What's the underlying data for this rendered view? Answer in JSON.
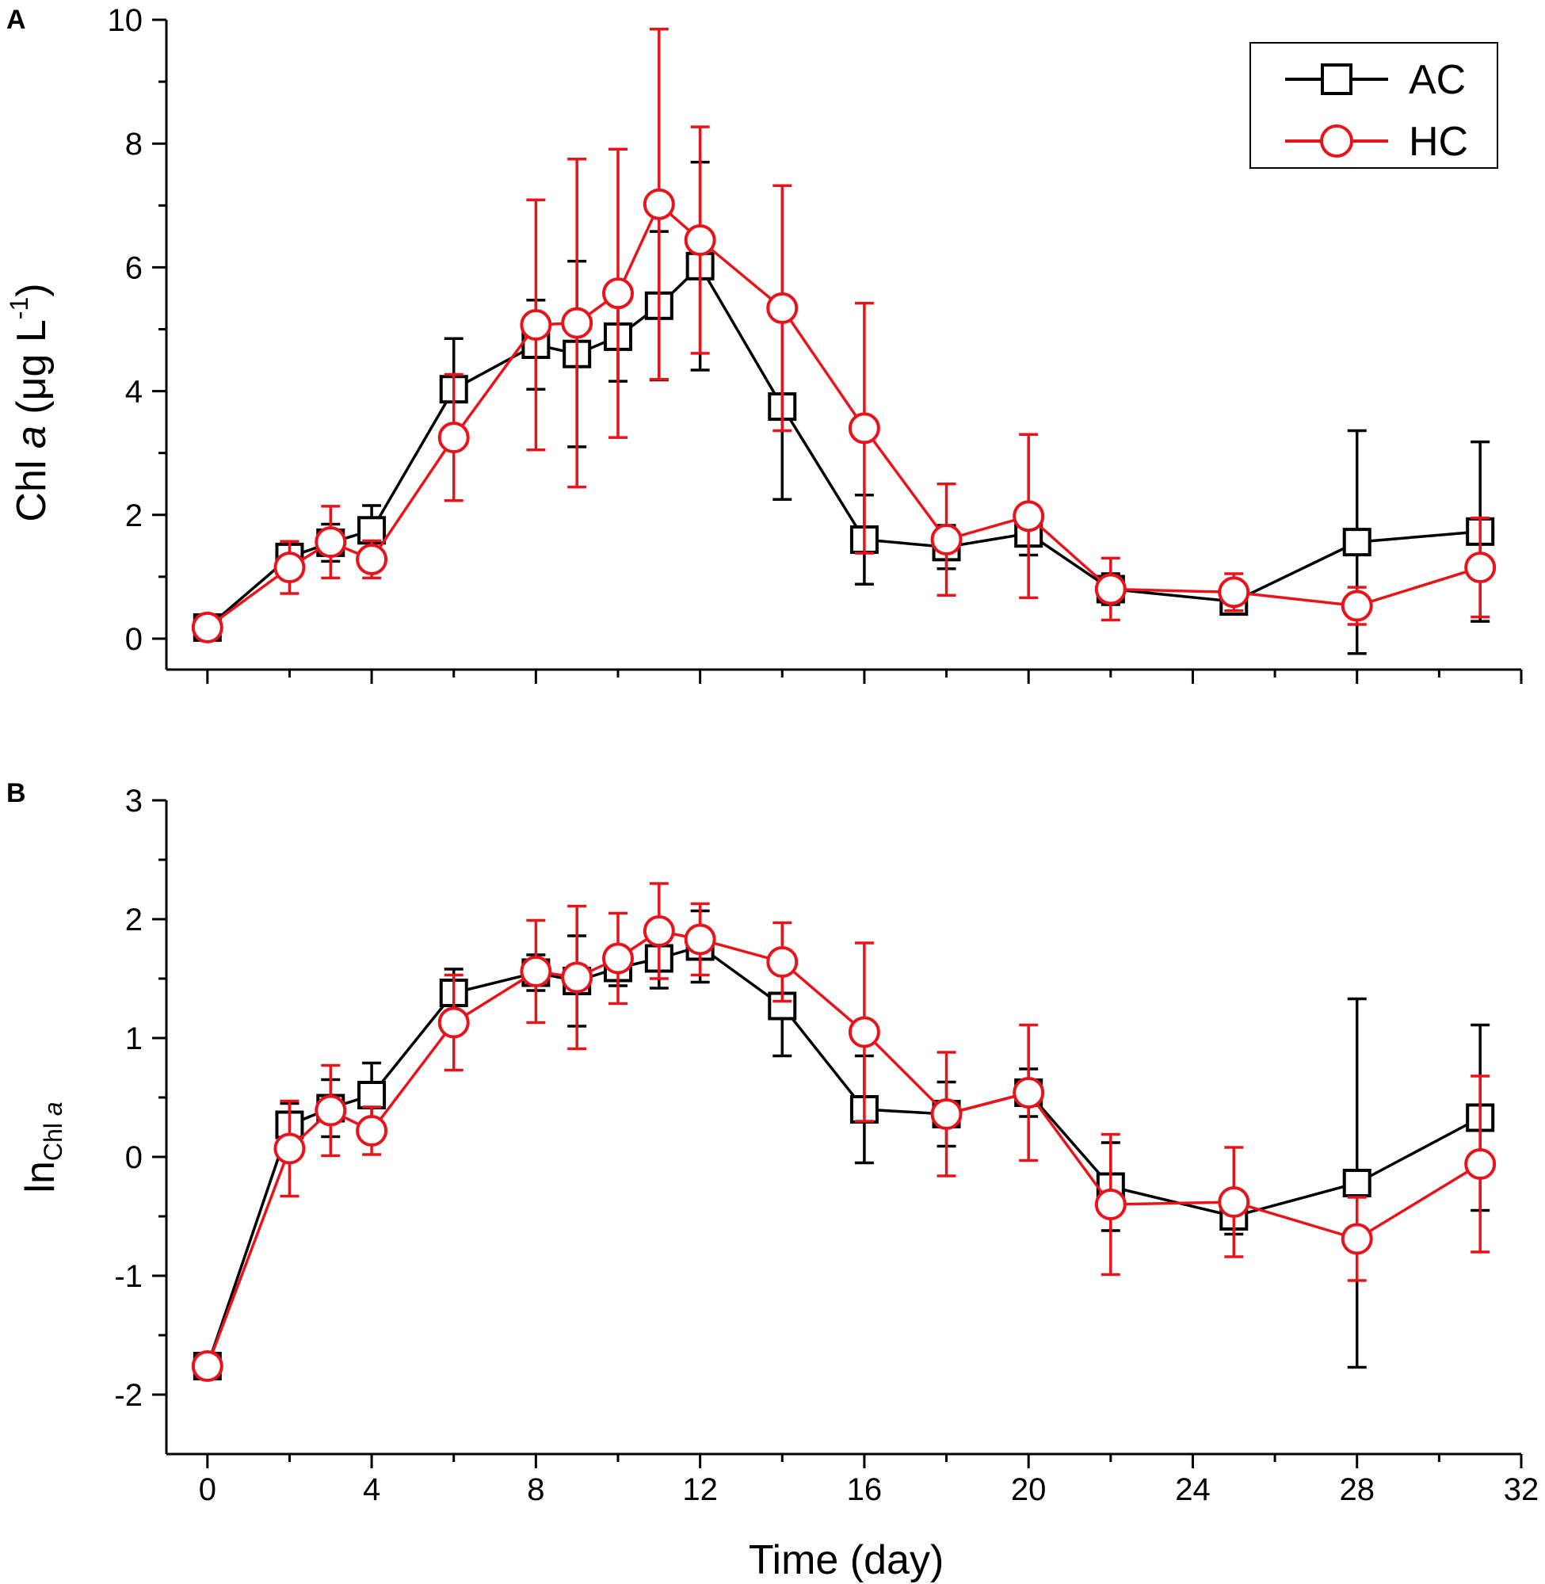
{
  "figure": {
    "x_axis": {
      "label": "Time (day)",
      "range": [
        -1,
        32
      ],
      "ticks": [
        0,
        4,
        8,
        12,
        16,
        20,
        24,
        28,
        32
      ],
      "tick_labels": [
        "0",
        "4",
        "8",
        "12",
        "16",
        "20",
        "24",
        "28",
        "32"
      ]
    },
    "legend": {
      "position": "top-right",
      "entries": [
        {
          "label": "AC",
          "color": "#000000",
          "marker": "square"
        },
        {
          "label": "HC",
          "color": "#e8141b",
          "marker": "circle"
        }
      ]
    }
  },
  "chart_data": [
    {
      "type": "line",
      "panel_label": "A",
      "ylabel_prefix": "Chl ",
      "ylabel_italic": "a",
      "ylabel_suffix": " (μg L",
      "ylabel_super": "-1",
      "ylabel_close": ")",
      "ylim": [
        -0.5,
        10
      ],
      "yticks": [
        0,
        2,
        4,
        6,
        8,
        10
      ],
      "ytick_labels": [
        "0",
        "2",
        "4",
        "6",
        "8",
        "10"
      ],
      "x": [
        0,
        2,
        3,
        4,
        6,
        8,
        9,
        10,
        11,
        12,
        14,
        16,
        18,
        20,
        22,
        25,
        28,
        31
      ],
      "series": [
        {
          "name": "AC",
          "color": "#000000",
          "marker": "square",
          "values": [
            0.18,
            1.32,
            1.55,
            1.75,
            4.03,
            4.75,
            4.6,
            4.88,
            5.38,
            6.02,
            3.75,
            1.6,
            1.48,
            1.7,
            0.8,
            0.6,
            1.56,
            1.73
          ],
          "errors": [
            0.05,
            0.25,
            0.3,
            0.4,
            0.82,
            0.72,
            1.5,
            0.72,
            1.2,
            1.68,
            1.5,
            0.72,
            0.35,
            0.35,
            0.25,
            0.1,
            1.8,
            1.45
          ]
        },
        {
          "name": "HC",
          "color": "#e8141b",
          "marker": "circle",
          "values": [
            0.18,
            1.15,
            1.56,
            1.28,
            3.25,
            5.07,
            5.1,
            5.58,
            7.02,
            6.44,
            5.34,
            3.4,
            1.6,
            1.98,
            0.8,
            0.75,
            0.53,
            1.15
          ],
          "errors": [
            0.05,
            0.42,
            0.58,
            0.3,
            1.02,
            2.02,
            2.65,
            2.33,
            2.83,
            1.83,
            1.98,
            2.02,
            0.9,
            1.32,
            0.5,
            0.3,
            0.3,
            0.8
          ]
        }
      ]
    },
    {
      "type": "line",
      "panel_label": "B",
      "ylabel_main": "ln",
      "ylabel_sub_prefix": "Chl ",
      "ylabel_sub_italic": "a",
      "ylim": [
        -2.5,
        3
      ],
      "yticks": [
        -2,
        -1,
        0,
        1,
        2,
        3
      ],
      "ytick_labels": [
        "-2",
        "-1",
        "0",
        "1",
        "2",
        "3"
      ],
      "x": [
        0,
        2,
        3,
        4,
        6,
        8,
        9,
        10,
        11,
        12,
        14,
        16,
        18,
        20,
        22,
        25,
        28,
        31
      ],
      "series": [
        {
          "name": "AC",
          "color": "#000000",
          "marker": "square",
          "values": [
            -1.76,
            0.27,
            0.41,
            0.52,
            1.38,
            1.55,
            1.48,
            1.59,
            1.67,
            1.77,
            1.27,
            0.4,
            0.36,
            0.54,
            -0.25,
            -0.5,
            -0.22,
            0.33
          ],
          "errors": [
            0.1,
            0.18,
            0.24,
            0.27,
            0.2,
            0.15,
            0.38,
            0.15,
            0.25,
            0.3,
            0.42,
            0.45,
            0.27,
            0.2,
            0.37,
            0.15,
            1.55,
            0.78
          ]
        },
        {
          "name": "HC",
          "color": "#e8141b",
          "marker": "circle",
          "values": [
            -1.76,
            0.07,
            0.39,
            0.22,
            1.13,
            1.56,
            1.51,
            1.67,
            1.9,
            1.83,
            1.64,
            1.05,
            0.36,
            0.54,
            -0.4,
            -0.38,
            -0.69,
            -0.06
          ],
          "errors": [
            0.1,
            0.4,
            0.38,
            0.2,
            0.4,
            0.43,
            0.6,
            0.38,
            0.4,
            0.3,
            0.33,
            0.75,
            0.52,
            0.57,
            0.59,
            0.46,
            0.35,
            0.74
          ]
        }
      ]
    }
  ]
}
